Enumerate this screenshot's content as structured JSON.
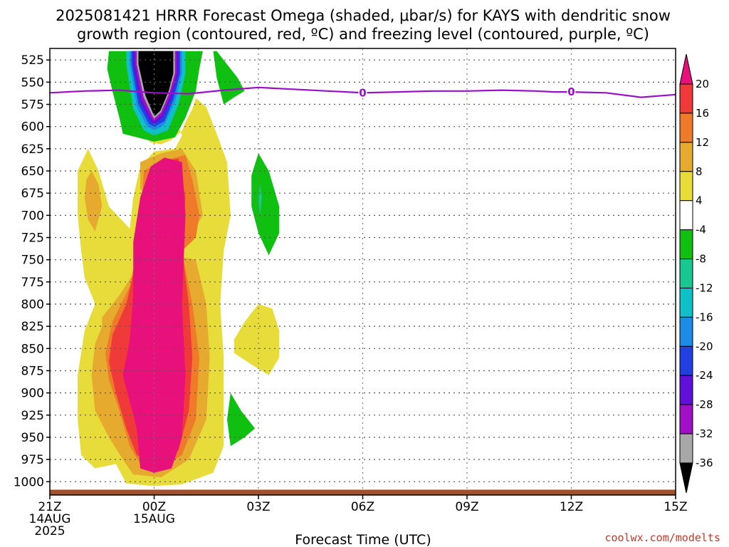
{
  "chart_data": {
    "type": "heatmap",
    "title_lines": [
      "2025081421 HRRR Forecast Omega (shaded, μbar/s) for KAYS with dendritic snow",
      "growth region (contoured, red, ºC) and freezing level (contoured, purple, ºC)"
    ],
    "xlabel": "Forecast Time (UTC)",
    "credit": "coolwx.com/modelts",
    "x_hours_range": [
      0,
      18
    ],
    "y_pressure_range": [
      1015,
      512
    ],
    "x_ticks": [
      {
        "hour": 0,
        "lines": [
          "21Z",
          "14AUG",
          "2025"
        ]
      },
      {
        "hour": 3,
        "lines": [
          "00Z",
          "15AUG"
        ]
      },
      {
        "hour": 6,
        "lines": [
          "03Z"
        ]
      },
      {
        "hour": 9,
        "lines": [
          "06Z"
        ]
      },
      {
        "hour": 12,
        "lines": [
          "09Z"
        ]
      },
      {
        "hour": 15,
        "lines": [
          "12Z"
        ]
      },
      {
        "hour": 18,
        "lines": [
          "15Z"
        ]
      }
    ],
    "y_ticks": [
      525,
      550,
      575,
      600,
      625,
      650,
      675,
      700,
      725,
      750,
      775,
      800,
      825,
      850,
      875,
      900,
      925,
      950,
      975,
      1000
    ],
    "colorbar": {
      "levels": [
        20,
        16,
        12,
        8,
        4,
        -4,
        -8,
        -12,
        -16,
        -20,
        -24,
        -28,
        -32,
        -36
      ],
      "colors": [
        "#e8107a",
        "#f03a3a",
        "#ee7a2a",
        "#e6aa2e",
        "#e8dc3a",
        "#ffffff",
        "#10c010",
        "#18c890",
        "#10c0c8",
        "#1c8ce8",
        "#2040e0",
        "#6010d8",
        "#a010c8",
        "#a8a8a8",
        "#000000"
      ]
    },
    "freezing_level_line": {
      "color": "#9a10c8",
      "label": "0",
      "label_hours": [
        9,
        15
      ],
      "points": [
        [
          0,
          562
        ],
        [
          1,
          560
        ],
        [
          2,
          559
        ],
        [
          3,
          562
        ],
        [
          4,
          563
        ],
        [
          5,
          559
        ],
        [
          6,
          556
        ],
        [
          7,
          558
        ],
        [
          8,
          560
        ],
        [
          9,
          562
        ],
        [
          10,
          561
        ],
        [
          11,
          560
        ],
        [
          12,
          560
        ],
        [
          13,
          559
        ],
        [
          14,
          560
        ],
        [
          14.5,
          561
        ],
        [
          15,
          561
        ],
        [
          16,
          562
        ],
        [
          17,
          567
        ],
        [
          18,
          564
        ]
      ]
    },
    "shaded_regions": [
      {
        "name": "omega-plus-4",
        "color": "#e8dc3a",
        "points": [
          [
            1.9,
            560
          ],
          [
            2.2,
            576
          ],
          [
            2.5,
            600
          ],
          [
            2.9,
            618
          ],
          [
            3.2,
            620
          ],
          [
            3.5,
            615
          ],
          [
            3.8,
            605
          ],
          [
            3.9,
            595
          ],
          [
            4.1,
            580
          ],
          [
            4.2,
            568
          ],
          [
            4.5,
            578
          ],
          [
            4.8,
            608
          ],
          [
            5.1,
            640
          ],
          [
            5.2,
            700
          ],
          [
            5.0,
            740
          ],
          [
            4.9,
            800
          ],
          [
            5.0,
            860
          ],
          [
            5.0,
            900
          ],
          [
            5.0,
            960
          ],
          [
            4.7,
            990
          ],
          [
            3.8,
            1003
          ],
          [
            3.0,
            1005
          ],
          [
            2.2,
            1002
          ],
          [
            1.9,
            980
          ],
          [
            1.3,
            985
          ],
          [
            0.9,
            970
          ],
          [
            0.8,
            930
          ],
          [
            0.8,
            880
          ],
          [
            1.0,
            830
          ],
          [
            1.3,
            800
          ],
          [
            1.0,
            770
          ],
          [
            0.9,
            740
          ],
          [
            0.8,
            700
          ],
          [
            0.8,
            650
          ],
          [
            1.1,
            625
          ],
          [
            1.4,
            650
          ],
          [
            1.7,
            690
          ],
          [
            2.3,
            715
          ],
          [
            2.4,
            680
          ],
          [
            2.6,
            645
          ],
          [
            3.0,
            628
          ],
          [
            3.6,
            625
          ],
          [
            3.8,
            610
          ],
          [
            3.6,
            590
          ],
          [
            3.2,
            575
          ],
          [
            2.8,
            565
          ],
          [
            2.4,
            560
          ]
        ]
      },
      {
        "name": "omega-plus-4-side",
        "color": "#e8dc3a",
        "points": [
          [
            5.3,
            840
          ],
          [
            5.6,
            820
          ],
          [
            6.0,
            800
          ],
          [
            6.4,
            805
          ],
          [
            6.6,
            830
          ],
          [
            6.6,
            860
          ],
          [
            6.3,
            880
          ],
          [
            5.8,
            868
          ],
          [
            5.3,
            855
          ]
        ]
      },
      {
        "name": "omega-plus-8",
        "color": "#e6aa2e",
        "points": [
          [
            1.5,
            815
          ],
          [
            2.0,
            790
          ],
          [
            2.5,
            760
          ],
          [
            3.0,
            740
          ],
          [
            3.5,
            745
          ],
          [
            4.2,
            750
          ],
          [
            4.5,
            800
          ],
          [
            4.6,
            860
          ],
          [
            4.5,
            930
          ],
          [
            4.0,
            975
          ],
          [
            3.2,
            995
          ],
          [
            2.4,
            992
          ],
          [
            2.1,
            975
          ],
          [
            1.7,
            950
          ],
          [
            1.3,
            920
          ],
          [
            1.2,
            880
          ],
          [
            1.3,
            845
          ],
          [
            1.5,
            825
          ]
        ]
      },
      {
        "name": "omega-plus-8-top",
        "color": "#e6aa2e",
        "points": [
          [
            2.6,
            640
          ],
          [
            3.2,
            630
          ],
          [
            3.8,
            625
          ],
          [
            4.2,
            650
          ],
          [
            4.4,
            700
          ],
          [
            4.1,
            720
          ],
          [
            3.5,
            700
          ],
          [
            3.0,
            690
          ],
          [
            2.6,
            670
          ]
        ]
      },
      {
        "name": "omega-plus-8-left",
        "color": "#e6aa2e",
        "points": [
          [
            1.2,
            650
          ],
          [
            1.4,
            665
          ],
          [
            1.5,
            690
          ],
          [
            1.3,
            718
          ],
          [
            1.1,
            705
          ],
          [
            1.0,
            680
          ],
          [
            1.05,
            660
          ]
        ]
      },
      {
        "name": "omega-plus-12",
        "color": "#ee7a2a",
        "points": [
          [
            2.7,
            650
          ],
          [
            3.3,
            638
          ],
          [
            3.9,
            632
          ],
          [
            4.1,
            660
          ],
          [
            4.3,
            700
          ],
          [
            4.2,
            725
          ],
          [
            3.8,
            740
          ],
          [
            4.1,
            800
          ],
          [
            4.3,
            860
          ],
          [
            4.2,
            930
          ],
          [
            3.8,
            970
          ],
          [
            3.2,
            985
          ],
          [
            2.6,
            980
          ],
          [
            2.3,
            960
          ],
          [
            2.0,
            920
          ],
          [
            1.7,
            885
          ],
          [
            1.6,
            855
          ],
          [
            1.8,
            820
          ],
          [
            2.3,
            780
          ],
          [
            2.6,
            720
          ]
        ]
      },
      {
        "name": "omega-plus-16",
        "color": "#f03a3a",
        "points": [
          [
            2.6,
            680
          ],
          [
            3.1,
            640
          ],
          [
            3.7,
            636
          ],
          [
            3.9,
            680
          ],
          [
            3.8,
            740
          ],
          [
            4.0,
            800
          ],
          [
            4.1,
            860
          ],
          [
            4.0,
            920
          ],
          [
            3.7,
            965
          ],
          [
            3.0,
            978
          ],
          [
            2.5,
            970
          ],
          [
            2.2,
            940
          ],
          [
            1.9,
            900
          ],
          [
            1.7,
            865
          ],
          [
            1.8,
            835
          ],
          [
            2.2,
            800
          ],
          [
            2.5,
            750
          ]
        ]
      },
      {
        "name": "omega-plus-20",
        "color": "#e8107a",
        "points": [
          [
            2.9,
            645
          ],
          [
            3.3,
            635
          ],
          [
            3.8,
            640
          ],
          [
            3.9,
            700
          ],
          [
            3.8,
            800
          ],
          [
            3.9,
            880
          ],
          [
            3.8,
            950
          ],
          [
            3.5,
            985
          ],
          [
            3.0,
            990
          ],
          [
            2.6,
            985
          ],
          [
            2.5,
            940
          ],
          [
            2.3,
            910
          ],
          [
            2.1,
            880
          ],
          [
            2.3,
            840
          ],
          [
            2.4,
            790
          ],
          [
            2.4,
            730
          ],
          [
            2.6,
            680
          ]
        ]
      },
      {
        "name": "omega-minus-4-top",
        "color": "#10c010",
        "points": [
          [
            1.7,
            515
          ],
          [
            1.65,
            535
          ],
          [
            1.8,
            560
          ],
          [
            2.0,
            590
          ],
          [
            2.1,
            608
          ],
          [
            2.5,
            612
          ],
          [
            3.0,
            617
          ],
          [
            3.6,
            612
          ],
          [
            3.9,
            590
          ],
          [
            4.2,
            560
          ],
          [
            4.3,
            535
          ],
          [
            4.4,
            515
          ],
          [
            4.8,
            515
          ],
          [
            5.4,
            545
          ],
          [
            5.6,
            560
          ],
          [
            5.3,
            567
          ],
          [
            5.0,
            575
          ],
          [
            4.8,
            545
          ],
          [
            4.7,
            515
          ]
        ]
      },
      {
        "name": "omega-minus-4-mid",
        "color": "#10c010",
        "points": [
          [
            6.0,
            630
          ],
          [
            6.3,
            650
          ],
          [
            6.6,
            690
          ],
          [
            6.6,
            720
          ],
          [
            6.3,
            745
          ],
          [
            6.0,
            720
          ],
          [
            5.8,
            690
          ],
          [
            5.8,
            655
          ]
        ]
      },
      {
        "name": "omega-minus-4-low",
        "color": "#10c010",
        "points": [
          [
            5.2,
            900
          ],
          [
            5.5,
            920
          ],
          [
            5.9,
            940
          ],
          [
            5.6,
            950
          ],
          [
            5.2,
            960
          ],
          [
            5.1,
            930
          ]
        ]
      },
      {
        "name": "omega-minus-8",
        "color": "#18c890",
        "points": [
          [
            6.05,
            665
          ],
          [
            6.1,
            680
          ],
          [
            6.05,
            700
          ],
          [
            6.0,
            682
          ]
        ]
      },
      {
        "name": "omega-minus-16",
        "color": "#10c0c8",
        "points": [
          [
            2.2,
            530
          ],
          [
            2.4,
            580
          ],
          [
            2.7,
            604
          ],
          [
            3.0,
            610
          ],
          [
            3.4,
            604
          ],
          [
            3.7,
            575
          ],
          [
            3.9,
            540
          ],
          [
            3.9,
            515
          ],
          [
            2.2,
            515
          ]
        ]
      },
      {
        "name": "omega-minus-20",
        "color": "#1c8ce8",
        "points": [
          [
            2.3,
            530
          ],
          [
            2.5,
            578
          ],
          [
            2.8,
            600
          ],
          [
            3.0,
            604
          ],
          [
            3.3,
            598
          ],
          [
            3.6,
            572
          ],
          [
            3.8,
            540
          ],
          [
            3.8,
            515
          ],
          [
            2.3,
            515
          ]
        ]
      },
      {
        "name": "omega-minus-24",
        "color": "#2040e0",
        "points": [
          [
            2.35,
            530
          ],
          [
            2.55,
            575
          ],
          [
            2.85,
            597
          ],
          [
            3.0,
            600
          ],
          [
            3.3,
            594
          ],
          [
            3.55,
            570
          ],
          [
            3.75,
            540
          ],
          [
            3.75,
            515
          ],
          [
            2.35,
            515
          ]
        ]
      },
      {
        "name": "omega-minus-28",
        "color": "#6010d8",
        "points": [
          [
            2.4,
            530
          ],
          [
            2.6,
            572
          ],
          [
            2.9,
            594
          ],
          [
            3.0,
            597
          ],
          [
            3.25,
            590
          ],
          [
            3.5,
            568
          ],
          [
            3.7,
            540
          ],
          [
            3.7,
            515
          ],
          [
            2.4,
            515
          ]
        ]
      },
      {
        "name": "omega-minus-32",
        "color": "#a010c8",
        "points": [
          [
            2.45,
            530
          ],
          [
            2.65,
            570
          ],
          [
            2.92,
            591
          ],
          [
            3.0,
            594
          ],
          [
            3.22,
            587
          ],
          [
            3.47,
            565
          ],
          [
            3.65,
            540
          ],
          [
            3.65,
            515
          ],
          [
            2.45,
            515
          ]
        ]
      },
      {
        "name": "omega-minus-36",
        "color": "#a8a8a8",
        "points": [
          [
            2.5,
            530
          ],
          [
            2.7,
            567
          ],
          [
            2.95,
            588
          ],
          [
            3.0,
            591
          ],
          [
            3.2,
            584
          ],
          [
            3.44,
            562
          ],
          [
            3.6,
            540
          ],
          [
            3.6,
            515
          ],
          [
            2.5,
            515
          ]
        ]
      },
      {
        "name": "omega-below-minus-36",
        "color": "#000000",
        "points": [
          [
            2.55,
            530
          ],
          [
            2.75,
            565
          ],
          [
            2.98,
            586
          ],
          [
            3.02,
            588
          ],
          [
            3.18,
            582
          ],
          [
            3.42,
            560
          ],
          [
            3.55,
            540
          ],
          [
            3.55,
            515
          ],
          [
            2.55,
            515
          ]
        ]
      }
    ],
    "ground": {
      "color": "#a0522d",
      "top_pressure": 1009
    }
  }
}
